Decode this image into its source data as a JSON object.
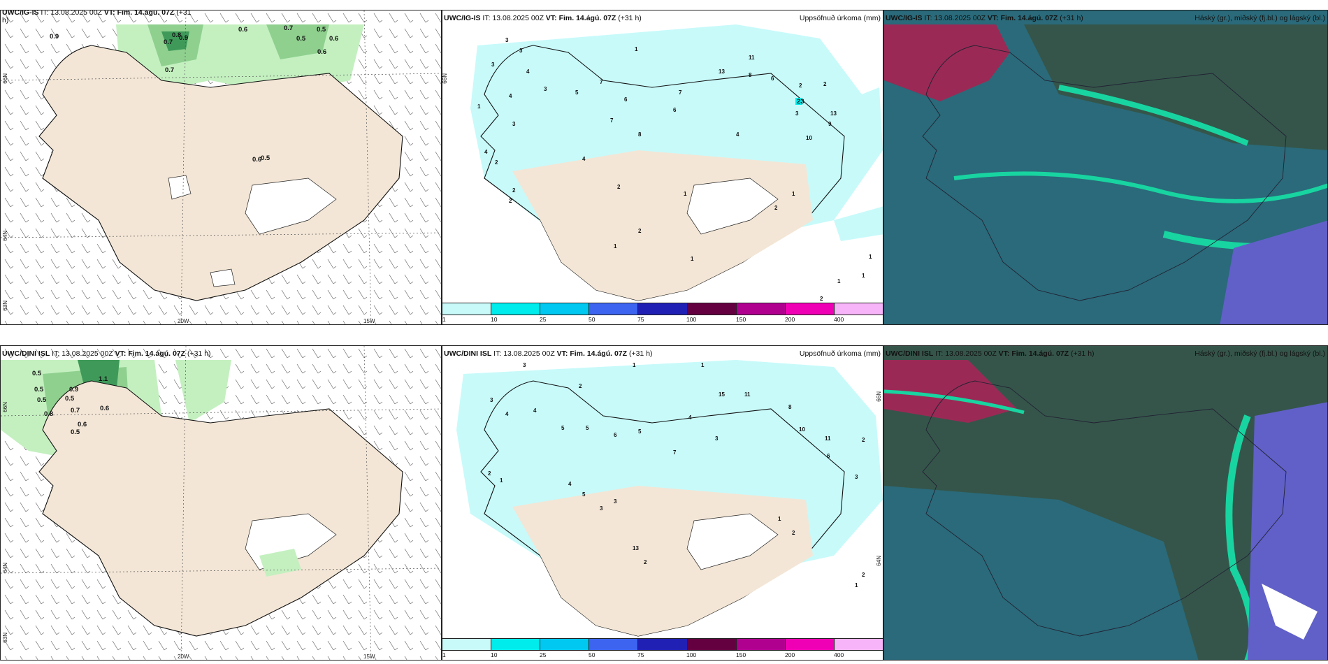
{
  "panels": {
    "a": {
      "model": "UWC/IG-IS",
      "run_prefix": "IT:",
      "run": "13.08.2025 00Z",
      "vt_prefix": "VT:",
      "vt": "Fim. 14.ágú. 07Z",
      "lead": "(+31",
      "lead_cont": "h)",
      "lat_labels": [
        "66N",
        "64N",
        "63N"
      ],
      "lon_labels": [
        "20W",
        "15W"
      ],
      "values": [
        "0.9",
        "0.8",
        "0.7",
        "0.6",
        "0.7",
        "0.5",
        "0.5",
        "0.6",
        "0.6",
        "0.9",
        "0.7",
        "0.6",
        "0.5"
      ]
    },
    "b": {
      "model": "UWC/IG-IS",
      "run_prefix": "IT:",
      "run": "13.08.2025 00Z",
      "vt_prefix": "VT:",
      "vt": "Fim. 14.ágú. 07Z",
      "lead": "(+31 h)",
      "title": "Uppsöfnuð úrkoma (mm)",
      "lat_label": "66N",
      "values": [
        "3",
        "3",
        "3",
        "1",
        "4",
        "4",
        "3",
        "5",
        "7",
        "6",
        "11",
        "7",
        "13",
        "6",
        "8",
        "6",
        "4",
        "2",
        "3",
        "2",
        "23",
        "13",
        "10",
        "9",
        "7",
        "8",
        "3",
        "4",
        "2",
        "1",
        "4",
        "2",
        "2",
        "2",
        "1",
        "1",
        "2",
        "2",
        "1",
        "1",
        "1",
        "1",
        "1",
        "2"
      ]
    },
    "c": {
      "model": "UWC/IG-IS",
      "run_prefix": "IT:",
      "run": "13.08.2025 00Z",
      "vt_prefix": "VT:",
      "vt": "Fim. 14.ágú. 07Z",
      "lead": "(+31 h)",
      "title": "Háský (gr.), miðský (fj.bl.) og lágský (bl.)"
    },
    "d": {
      "model": "UWC/DINI ISL",
      "run_prefix": "IT:",
      "run": "13.08.2025 00Z",
      "vt_prefix": "VT:",
      "vt": "Fim. 14.ágú. 07Z",
      "lead": "(+31 h)",
      "lat_labels": [
        "66N",
        "64N",
        "63N"
      ],
      "lon_labels": [
        "20W",
        "15W"
      ],
      "values": [
        "0.5",
        "0.5",
        "0.5",
        "0.9",
        "0.5",
        "1.1",
        "0.8",
        "0.7",
        "0.6",
        "0.6",
        "0.5"
      ]
    },
    "e": {
      "model": "UWC/DINI ISL",
      "run_prefix": "IT:",
      "run": "13.08.2025 00Z",
      "vt_prefix": "VT:",
      "vt": "Fim. 14.ágú. 07Z",
      "lead": "(+31 h)",
      "title": "Uppsöfnuð úrkoma (mm)",
      "lat_labels": [
        "66N",
        "64N"
      ],
      "values": [
        "3",
        "1",
        "1",
        "2",
        "3",
        "4",
        "4",
        "5",
        "5",
        "6",
        "5",
        "11",
        "15",
        "4",
        "3",
        "8",
        "10",
        "11",
        "6",
        "7",
        "2",
        "3",
        "13",
        "2",
        "4",
        "5",
        "2",
        "1",
        "3",
        "3",
        "2",
        "1",
        "2",
        "1"
      ]
    },
    "f": {
      "model": "UWC/DINI ISL",
      "run_prefix": "IT:",
      "run": "13.08.2025 00Z",
      "vt_prefix": "VT:",
      "vt": "Fim. 14.ágú. 07Z",
      "lead": "(+31 h)",
      "title": "Háský (gr.), miðský (fj.bl.) og lágský (bl.)"
    }
  },
  "colorbar": {
    "colors": [
      "#c8fafa",
      "#00ecec",
      "#00c8f0",
      "#3c64f0",
      "#2020b4",
      "#640040",
      "#b00090",
      "#f000b4",
      "#f8b4f8"
    ],
    "ticks": [
      "1",
      "10",
      "25",
      "50",
      "75",
      "100",
      "150",
      "200",
      "400"
    ]
  },
  "colors": {
    "land": "#f3e6d6",
    "precip_light": "#c8fafa",
    "precip_mid": "#00ecec",
    "green_light": "#c4f0c0",
    "green_mid": "#8fd08f",
    "green_dark": "#3f9a5a",
    "cloud_base": "#2a6a7a",
    "cloud_dark": "#35554a",
    "cloud_high": "#9a2a55",
    "cloud_edge": "#18d4a0",
    "cloud_low": "#6060c8"
  }
}
